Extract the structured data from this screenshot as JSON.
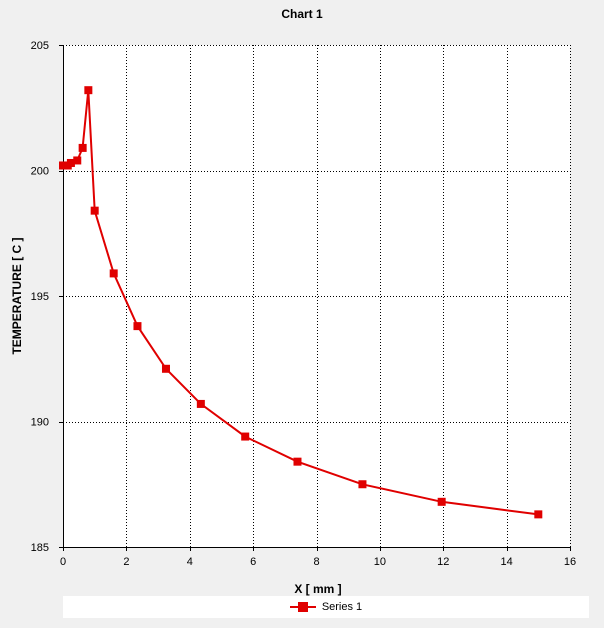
{
  "chart_data": {
    "type": "line",
    "title": "Chart 1",
    "xlabel": "X [ mm ]",
    "ylabel": "TEMPERATURE [ C ]",
    "xlim": [
      0,
      16
    ],
    "ylim": [
      185,
      205
    ],
    "xticks": [
      0,
      2,
      4,
      6,
      8,
      10,
      12,
      14,
      16
    ],
    "yticks": [
      185,
      190,
      195,
      200,
      205
    ],
    "grid": true,
    "legend_position": "bottom",
    "series": [
      {
        "name": "Series 1",
        "color": "#e00000",
        "marker": "square",
        "x": [
          0.0,
          0.15,
          0.25,
          0.45,
          0.62,
          0.8,
          1.0,
          1.6,
          2.35,
          3.25,
          4.35,
          5.75,
          7.4,
          9.45,
          11.95,
          15.0
        ],
        "y": [
          200.2,
          200.2,
          200.3,
          200.4,
          200.9,
          203.2,
          198.4,
          195.9,
          193.8,
          192.1,
          190.7,
          189.4,
          188.4,
          187.5,
          186.8,
          186.3
        ]
      }
    ]
  }
}
